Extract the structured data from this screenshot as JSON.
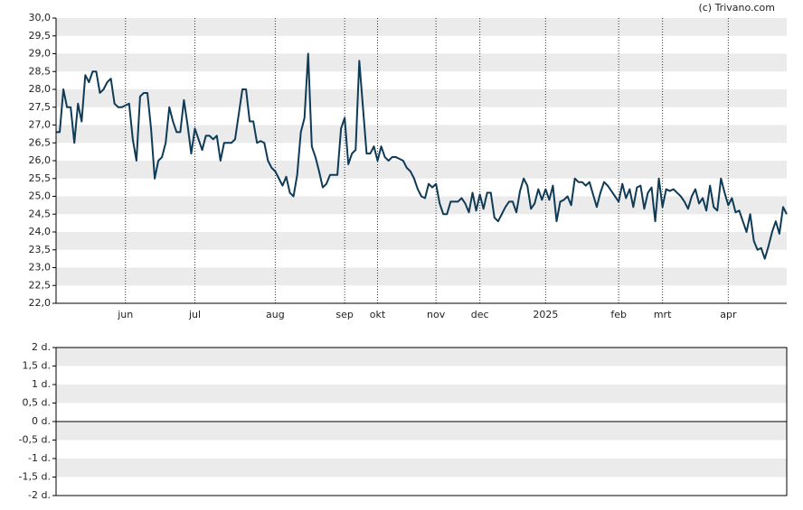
{
  "source": "(c) Trivano.com",
  "chart_data": [
    {
      "type": "line",
      "categories": [
        null,
        null,
        null,
        null,
        null,
        null,
        null,
        null,
        null,
        null,
        null,
        null,
        null,
        null,
        null,
        null,
        null,
        null,
        null,
        "jun",
        null,
        null,
        null,
        null,
        null,
        null,
        null,
        null,
        null,
        null,
        null,
        null,
        null,
        null,
        null,
        null,
        null,
        null,
        "jul",
        null,
        null,
        null,
        null,
        null,
        null,
        null,
        null,
        null,
        null,
        null,
        null,
        null,
        null,
        null,
        null,
        null,
        null,
        null,
        null,
        null,
        "aug",
        null,
        null,
        null,
        null,
        null,
        null,
        null,
        null,
        null,
        null,
        null,
        null,
        null,
        null,
        null,
        null,
        null,
        null,
        "sep",
        null,
        null,
        null,
        null,
        null,
        null,
        null,
        null,
        "okt",
        null,
        null,
        null,
        null,
        null,
        null,
        null,
        null,
        null,
        null,
        null,
        null,
        null,
        null,
        null,
        "nov",
        null,
        null,
        null,
        null,
        null,
        null,
        null,
        null,
        null,
        null,
        null,
        "dec",
        null,
        null,
        null,
        null,
        null,
        null,
        null,
        null,
        null,
        null,
        null,
        null,
        null,
        null,
        null,
        null,
        null,
        "2025",
        null,
        null,
        null,
        null,
        null,
        null,
        null,
        null,
        null,
        null,
        null,
        null,
        null,
        null,
        null,
        null,
        null,
        null,
        null,
        "feb",
        null,
        null,
        null,
        null,
        null,
        null,
        null,
        null,
        null,
        null,
        null,
        "mrt",
        null,
        null,
        null,
        null,
        null,
        null,
        null,
        null,
        null,
        null,
        null,
        null,
        null,
        null,
        null,
        null,
        null,
        "apr",
        null,
        null,
        null,
        null,
        null,
        null,
        null,
        null,
        null,
        null,
        null,
        null,
        null,
        null,
        null,
        null
      ],
      "series": [
        {
          "color": "#0f3b57",
          "values": [
            26.8,
            26.8,
            28.0,
            27.5,
            27.5,
            26.5,
            27.6,
            27.1,
            28.4,
            28.2,
            28.5,
            28.5,
            27.9,
            28.0,
            28.2,
            28.3,
            27.6,
            27.5,
            27.5,
            27.55,
            27.6,
            26.6,
            26.0,
            27.8,
            27.9,
            27.9,
            26.9,
            25.5,
            26.0,
            26.1,
            26.5,
            27.5,
            27.1,
            26.8,
            26.8,
            27.7,
            27.0,
            26.2,
            26.9,
            26.6,
            26.3,
            26.7,
            26.7,
            26.6,
            26.7,
            26.0,
            26.5,
            26.5,
            26.5,
            26.6,
            27.3,
            28.0,
            28.0,
            27.1,
            27.1,
            26.5,
            26.55,
            26.5,
            26.0,
            25.8,
            25.7,
            25.5,
            25.3,
            25.55,
            25.1,
            25.0,
            25.6,
            26.8,
            27.2,
            29.0,
            26.4,
            26.1,
            25.7,
            25.25,
            25.35,
            25.6,
            25.6,
            25.6,
            26.9,
            27.2,
            25.9,
            26.2,
            26.3,
            28.8,
            27.5,
            26.2,
            26.2,
            26.4,
            26.0,
            26.4,
            26.1,
            26.0,
            26.1,
            26.1,
            26.05,
            26.0,
            25.8,
            25.7,
            25.5,
            25.2,
            25.0,
            24.95,
            25.35,
            25.25,
            25.35,
            24.8,
            24.5,
            24.5,
            24.85,
            24.85,
            24.85,
            24.95,
            24.8,
            24.55,
            25.1,
            24.6,
            25.05,
            24.65,
            25.1,
            25.1,
            24.4,
            24.3,
            24.5,
            24.7,
            24.85,
            24.85,
            24.55,
            25.15,
            25.5,
            25.3,
            24.65,
            24.8,
            25.2,
            24.9,
            25.2,
            24.9,
            25.3,
            24.3,
            24.85,
            24.9,
            25.0,
            24.75,
            25.5,
            25.4,
            25.4,
            25.3,
            25.4,
            25.05,
            24.7,
            25.1,
            25.4,
            25.3,
            25.15,
            25.0,
            24.85,
            25.35,
            24.95,
            25.2,
            24.7,
            25.25,
            25.3,
            24.65,
            25.1,
            25.25,
            24.3,
            25.5,
            24.7,
            25.2,
            25.15,
            25.2,
            25.1,
            25.0,
            24.85,
            24.65,
            25.0,
            25.2,
            24.8,
            24.95,
            24.6,
            25.3,
            24.7,
            24.6,
            25.5,
            25.1,
            24.75,
            24.95,
            24.55,
            24.6,
            24.3,
            24.0,
            24.5,
            23.75,
            23.5,
            23.55,
            23.25,
            23.6,
            24.0,
            24.3,
            23.95,
            24.7,
            24.5
          ]
        }
      ],
      "ylim": [
        22,
        30
      ],
      "yticks": [
        {
          "value": 22,
          "label": "22,0"
        },
        {
          "value": 22.5,
          "label": "22,5"
        },
        {
          "value": 23,
          "label": "23,0"
        },
        {
          "value": 23.5,
          "label": "23,5"
        },
        {
          "value": 24,
          "label": "24,0"
        },
        {
          "value": 24.5,
          "label": "24,5"
        },
        {
          "value": 25,
          "label": "25,0"
        },
        {
          "value": 25.5,
          "label": "25,5"
        },
        {
          "value": 26,
          "label": "26,0"
        },
        {
          "value": 26.5,
          "label": "26,5"
        },
        {
          "value": 27,
          "label": "27,0"
        },
        {
          "value": 27.5,
          "label": "27,5"
        },
        {
          "value": 28,
          "label": "28,0"
        },
        {
          "value": 28.5,
          "label": "28,5"
        },
        {
          "value": 29,
          "label": "29,0"
        },
        {
          "value": 29.5,
          "label": "29,5"
        },
        {
          "value": 30,
          "label": "30,0"
        }
      ]
    },
    {
      "type": "line",
      "ylim": [
        -2,
        2
      ],
      "yticks": [
        {
          "value": 2,
          "label": "2 d."
        },
        {
          "value": 1.5,
          "label": "1,5 d."
        },
        {
          "value": 1,
          "label": "1 d."
        },
        {
          "value": 0.5,
          "label": "0,5 d."
        },
        {
          "value": 0,
          "label": "0 d."
        },
        {
          "value": -0.5,
          "label": "-0,5 d."
        },
        {
          "value": -1,
          "label": "-1 d."
        },
        {
          "value": -1.5,
          "label": "-1,5 d."
        },
        {
          "value": -2,
          "label": "-2 d."
        }
      ]
    }
  ]
}
